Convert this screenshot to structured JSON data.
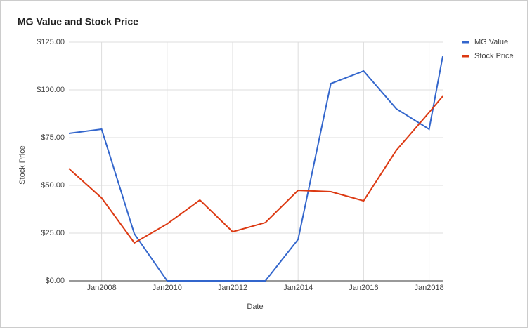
{
  "chart_data": {
    "type": "line",
    "title": "MG Value and Stock Price",
    "x_label": "Date",
    "y_label": "Stock Price",
    "x": [
      "2007-01",
      "2008-01",
      "2009-01",
      "2010-01",
      "2011-01",
      "2012-01",
      "2013-01",
      "2014-01",
      "2015-01",
      "2016-01",
      "2017-01",
      "2018-01",
      "2018-06"
    ],
    "series": [
      {
        "name": "MG Value",
        "color": "#3366cc",
        "values": [
          77.2,
          79.4,
          24.6,
          0,
          0,
          0,
          0,
          21.7,
          103.3,
          109.9,
          90.1,
          79.4,
          117.6
        ]
      },
      {
        "name": "Stock Price",
        "color": "#dc3912",
        "values": [
          58.8,
          43.4,
          19.9,
          29.8,
          42.3,
          25.7,
          30.5,
          47.4,
          46.7,
          41.9,
          68.4,
          88.2,
          96.7
        ]
      }
    ],
    "xlim": [
      "2007-01",
      "2018-06"
    ],
    "xticks": [
      {
        "value": "2008-01",
        "label": "Jan2008"
      },
      {
        "value": "2010-01",
        "label": "Jan2010"
      },
      {
        "value": "2012-01",
        "label": "Jan2012"
      },
      {
        "value": "2014-01",
        "label": "Jan2014"
      },
      {
        "value": "2016-01",
        "label": "Jan2016"
      },
      {
        "value": "2018-01",
        "label": "Jan2018"
      }
    ],
    "ylim": [
      0,
      125
    ],
    "yticks": [
      {
        "value": 0,
        "label": "$0.00"
      },
      {
        "value": 25,
        "label": "$25.00"
      },
      {
        "value": 50,
        "label": "$50.00"
      },
      {
        "value": 75,
        "label": "$75.00"
      },
      {
        "value": 100,
        "label": "$100.00"
      },
      {
        "value": 125,
        "label": "$125.00"
      }
    ],
    "grid": true,
    "legend": "right"
  }
}
